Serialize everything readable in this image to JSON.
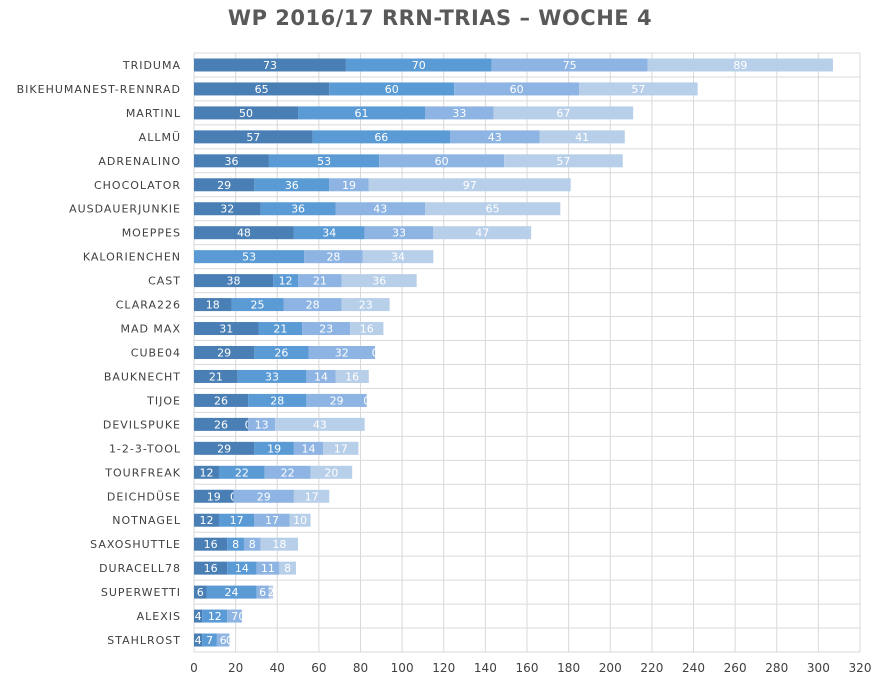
{
  "chart_data": {
    "type": "bar",
    "orientation": "horizontal",
    "stacked": true,
    "title": "WP 2016/17 RRN-TRIAS – WOCHE 4",
    "categories": [
      "TRIDUMA",
      "BIKEHUMANEST-RENNRAD",
      "MARTINL",
      "ALLMÜ",
      "ADRENALINO",
      "CHOCOLATOR",
      "AUSDAUERJUNKIE",
      "MOEPPES",
      "KALORIENCHEN",
      "CAST",
      "CLARA226",
      "MAD MAX",
      "CUBE04",
      "BAUKNECHT",
      "TIJOE",
      "DEVILSPUKE",
      "1-2-3-TOOL",
      "TOURFREAK",
      "DEICHDÜSE",
      "NOTNAGEL",
      "SAXOSHUTTLE",
      "DURACELL78",
      "SUPERWETTI",
      "ALEXIS",
      "STAHLROST"
    ],
    "series": [
      {
        "values": [
          73,
          65,
          50,
          57,
          36,
          29,
          32,
          48,
          0,
          38,
          18,
          31,
          29,
          21,
          26,
          26,
          29,
          12,
          19,
          12,
          16,
          16,
          6,
          4,
          4
        ],
        "color": "#4a7fb5"
      },
      {
        "values": [
          70,
          60,
          61,
          66,
          53,
          36,
          36,
          34,
          53,
          12,
          25,
          21,
          26,
          33,
          28,
          0,
          19,
          22,
          0,
          17,
          8,
          14,
          24,
          12,
          7
        ],
        "color": "#5b9bd5"
      },
      {
        "values": [
          75,
          60,
          33,
          43,
          60,
          19,
          43,
          33,
          28,
          21,
          28,
          23,
          32,
          14,
          29,
          13,
          14,
          22,
          29,
          17,
          8,
          11,
          6,
          7,
          6
        ],
        "color": "#8db4e2"
      },
      {
        "values": [
          89,
          57,
          67,
          41,
          57,
          97,
          65,
          47,
          34,
          36,
          23,
          16,
          0,
          16,
          0,
          43,
          17,
          20,
          17,
          10,
          18,
          8,
          2,
          0,
          0
        ],
        "color": "#b8cfea"
      }
    ],
    "xlim": [
      0,
      320
    ],
    "xticks": [
      0,
      20,
      40,
      60,
      80,
      100,
      120,
      140,
      160,
      180,
      200,
      220,
      240,
      260,
      280,
      300,
      320
    ],
    "grid": true,
    "legend": "none"
  }
}
